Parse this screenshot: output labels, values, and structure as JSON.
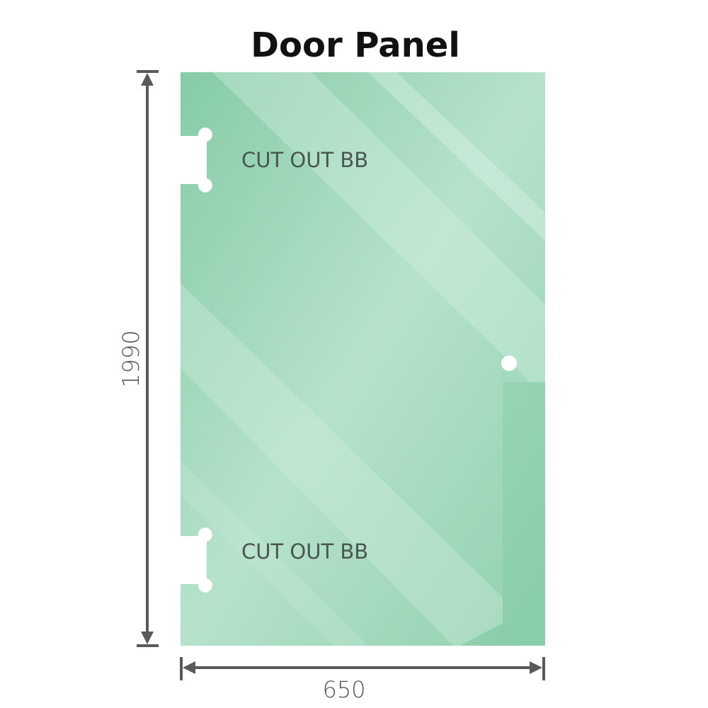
{
  "title": "Door Panel",
  "cutouts": [
    {
      "label": "CUT OUT BB"
    },
    {
      "label": "CUT OUT BB"
    }
  ],
  "dimensions": {
    "height": "1990",
    "width": "650"
  },
  "colors": {
    "glass": "#8fd0ad",
    "glass_light": "#b7e3cc",
    "dimension_line": "#5a5a5a",
    "label_text": "#4a5650"
  }
}
